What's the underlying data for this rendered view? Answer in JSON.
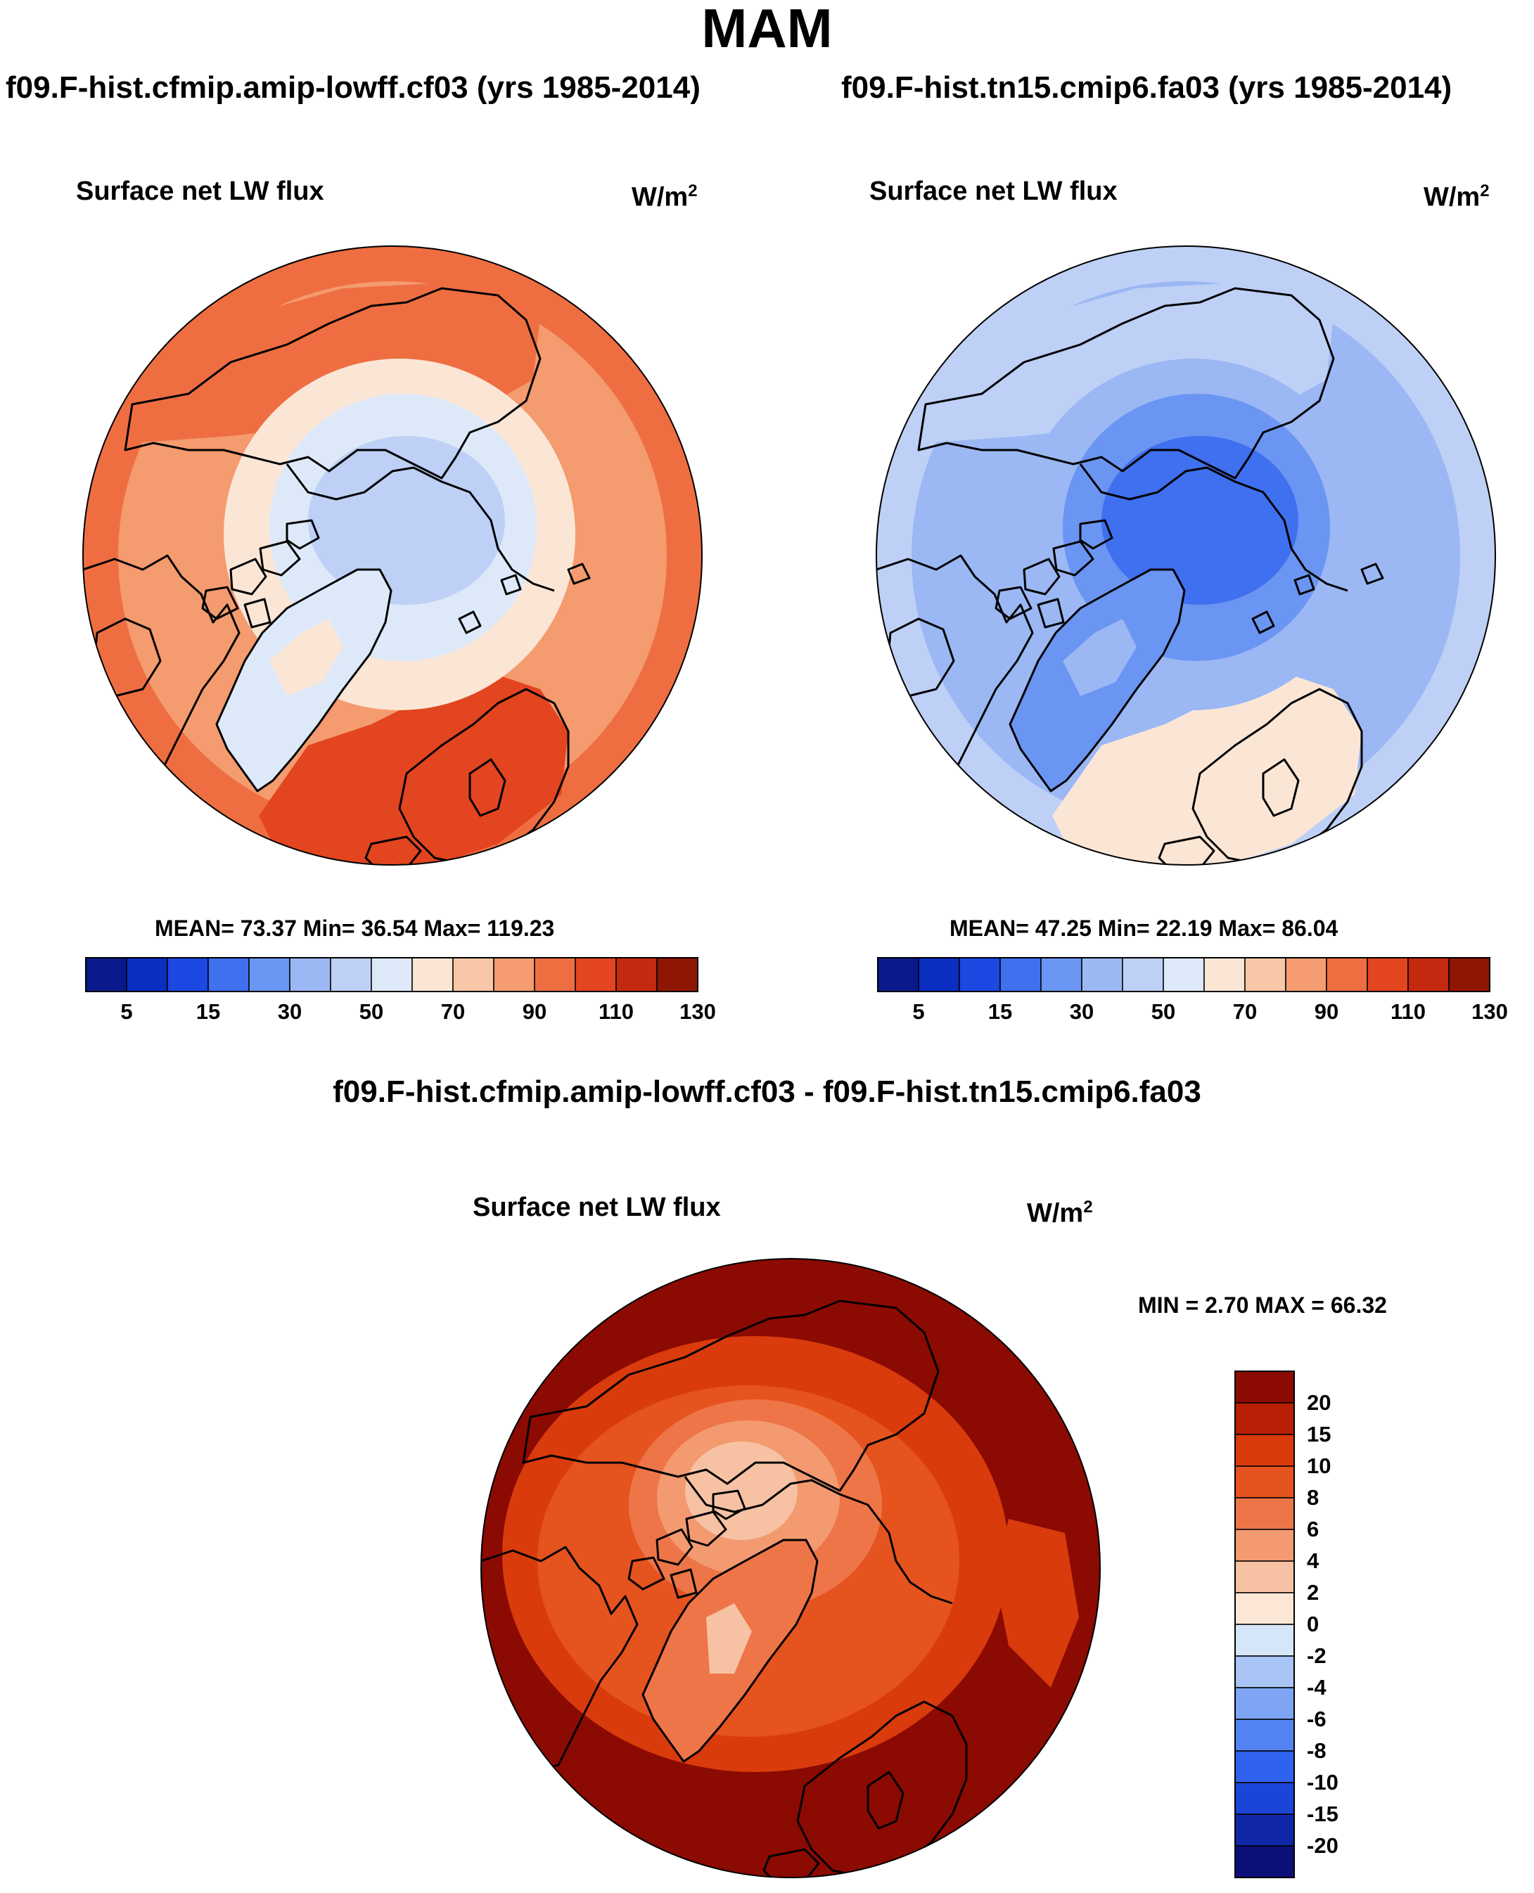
{
  "figure_title": "MAM",
  "colors": {
    "blue_red_scale": [
      "#0a1a8c",
      "#0a2ec0",
      "#1a48e0",
      "#3f70f0",
      "#6b95f2",
      "#9bb7f4",
      "#bed0f6",
      "#dde9f9",
      "#fbe6d6",
      "#f8c7a8",
      "#f49b6f",
      "#ee6e42",
      "#e2451f",
      "#c42a10",
      "#8f1505"
    ],
    "diff_scale": [
      "#0c0f78",
      "#1028a8",
      "#1b45d6",
      "#2f62ee",
      "#5384f1",
      "#7da5f3",
      "#a9c5f5",
      "#d6e6f9",
      "#fce7d7",
      "#f7c2a4",
      "#f39a70",
      "#ee7548",
      "#e5531f",
      "#d93b0c",
      "#b81f05",
      "#8b0a02"
    ],
    "coast": "#000000"
  },
  "panels": [
    {
      "id": "left",
      "case": "f09.F-hist.cfmip.amip-lowff.cf03 (yrs 1985-2014)",
      "variable": "Surface net LW flux",
      "units": "W/m",
      "units_sup": "2",
      "stats": "MEAN=  73.37  Min=  36.54  Max= 119.23",
      "colorbar_ticks": [
        "5",
        "15",
        "30",
        "50",
        "70",
        "90",
        "110",
        "130"
      ],
      "field": {
        "ocean_level": 11,
        "pole_level": 6,
        "ring_level": 7,
        "land_level": 8,
        "hot_level": 12
      }
    },
    {
      "id": "right",
      "case": "f09.F-hist.tn15.cmip6.fa03 (yrs 1985-2014)",
      "variable": "Surface net LW flux",
      "units": "W/m",
      "units_sup": "2",
      "stats": "MEAN=  47.25  Min=  22.19  Max=  86.04",
      "colorbar_ticks": [
        "5",
        "15",
        "30",
        "50",
        "70",
        "90",
        "110",
        "130"
      ],
      "field": {
        "ocean_level": 6,
        "pole_level": 3,
        "ring_level": 4,
        "land_level": 5,
        "hot_level": 8
      }
    }
  ],
  "difference": {
    "title": "f09.F-hist.cfmip.amip-lowff.cf03 - f09.F-hist.tn15.cmip6.fa03",
    "variable": "Surface net LW flux",
    "units": "W/m",
    "units_sup": "2",
    "minmax": "MIN =   2.70 MAX =  66.32",
    "colorbar_labels": [
      "20",
      "15",
      "10",
      "8",
      "6",
      "4",
      "2",
      "0",
      "-2",
      "-4",
      "-6",
      "-8",
      "-10",
      "-15",
      "-20"
    ]
  }
}
